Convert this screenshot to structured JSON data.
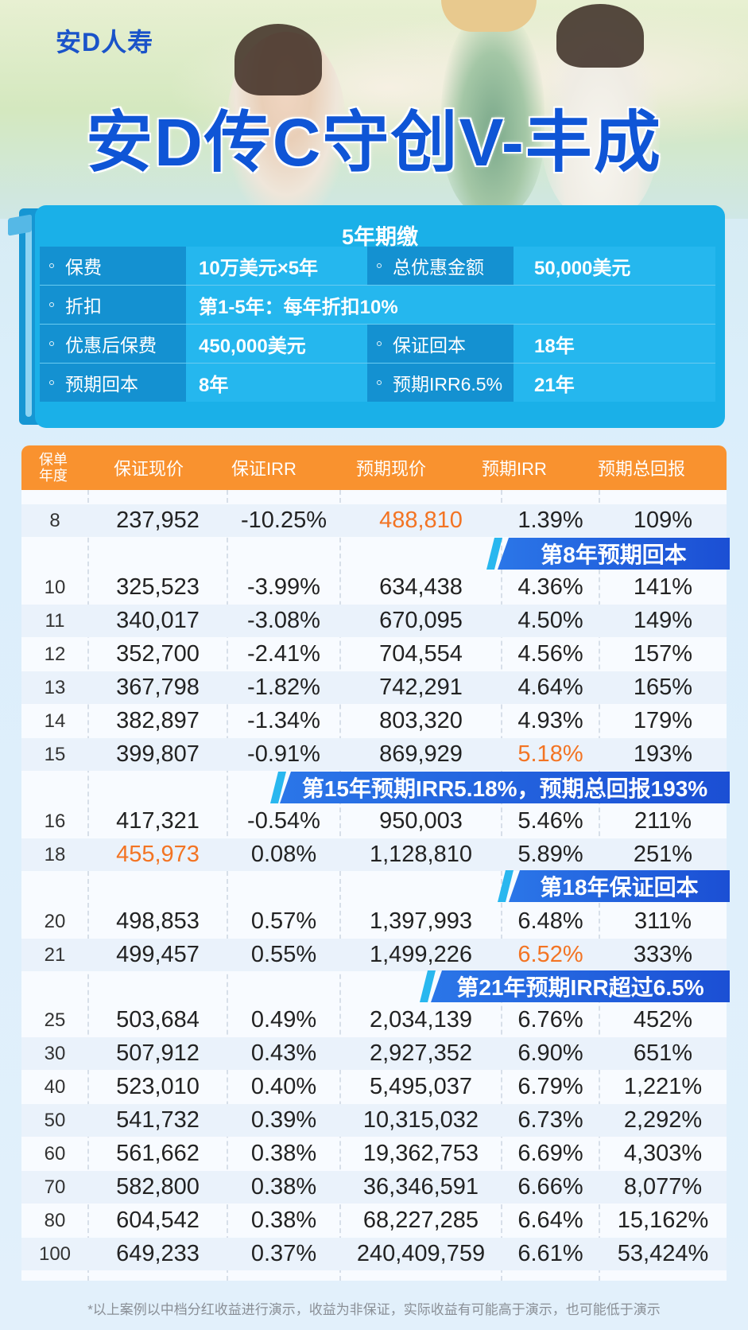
{
  "brand": "安D人寿",
  "title": "安D传C守创V-丰成",
  "summary": {
    "heading": "5年期缴",
    "rows": [
      {
        "label1": "保费",
        "value1": "10万美元×5年",
        "label2": "总优惠金额",
        "value2": "50,000美元"
      },
      {
        "label1": "折扣",
        "value1": "第1-5年：每年折扣10%"
      },
      {
        "label1": "优惠后保费",
        "value1": "450,000美元",
        "label2": "保证回本",
        "value2": "18年"
      },
      {
        "label1": "预期回本",
        "value1": "8年",
        "label2": "预期IRR6.5%",
        "value2": "21年"
      }
    ]
  },
  "table": {
    "headers": {
      "year": "保单年度",
      "guaranteed_cv": "保证现价",
      "guaranteed_irr": "保证IRR",
      "expected_cv": "预期现价",
      "expected_irr": "预期IRR",
      "expected_total": "预期总回报"
    },
    "rows": [
      [
        "8",
        "237,952",
        "-10.25%",
        "488,810",
        "1.39%",
        "109%"
      ],
      [
        "10",
        "325,523",
        "-3.99%",
        "634,438",
        "4.36%",
        "141%"
      ],
      [
        "11",
        "340,017",
        "-3.08%",
        "670,095",
        "4.50%",
        "149%"
      ],
      [
        "12",
        "352,700",
        "-2.41%",
        "704,554",
        "4.56%",
        "157%"
      ],
      [
        "13",
        "367,798",
        "-1.82%",
        "742,291",
        "4.64%",
        "165%"
      ],
      [
        "14",
        "382,897",
        "-1.34%",
        "803,320",
        "4.93%",
        "179%"
      ],
      [
        "15",
        "399,807",
        "-0.91%",
        "869,929",
        "5.18%",
        "193%"
      ],
      [
        "16",
        "417,321",
        "-0.54%",
        "950,003",
        "5.46%",
        "211%"
      ],
      [
        "18",
        "455,973",
        "0.08%",
        "1,128,810",
        "5.89%",
        "251%"
      ],
      [
        "20",
        "498,853",
        "0.57%",
        "1,397,993",
        "6.48%",
        "311%"
      ],
      [
        "21",
        "499,457",
        "0.55%",
        "1,499,226",
        "6.52%",
        "333%"
      ],
      [
        "25",
        "503,684",
        "0.49%",
        "2,034,139",
        "6.76%",
        "452%"
      ],
      [
        "30",
        "507,912",
        "0.43%",
        "2,927,352",
        "6.90%",
        "651%"
      ],
      [
        "40",
        "523,010",
        "0.40%",
        "5,495,037",
        "6.79%",
        "1,221%"
      ],
      [
        "50",
        "541,732",
        "0.39%",
        "10,315,032",
        "6.73%",
        "2,292%"
      ],
      [
        "60",
        "561,662",
        "0.38%",
        "19,362,753",
        "6.69%",
        "4,303%"
      ],
      [
        "70",
        "582,800",
        "0.38%",
        "36,346,591",
        "6.66%",
        "8,077%"
      ],
      [
        "80",
        "604,542",
        "0.38%",
        "68,227,285",
        "6.64%",
        "15,162%"
      ],
      [
        "100",
        "649,233",
        "0.37%",
        "240,409,759",
        "6.61%",
        "53,424%"
      ]
    ],
    "banners": [
      "第8年预期回本",
      "第15年预期IRR5.18%，预期总回报193%",
      "第18年保证回本",
      "第21年预期IRR超过6.5%"
    ]
  },
  "footnote": "*以上案例以中档分红收益进行演示，收益为非保证，实际收益有可能高于演示，也可能低于演示",
  "colors": {
    "brand_blue": "#0f55d6",
    "card_blue": "#1ab0e8",
    "header_orange": "#f9922f",
    "highlight_orange": "#f37423",
    "banner_blue": "#1b4fd4"
  }
}
